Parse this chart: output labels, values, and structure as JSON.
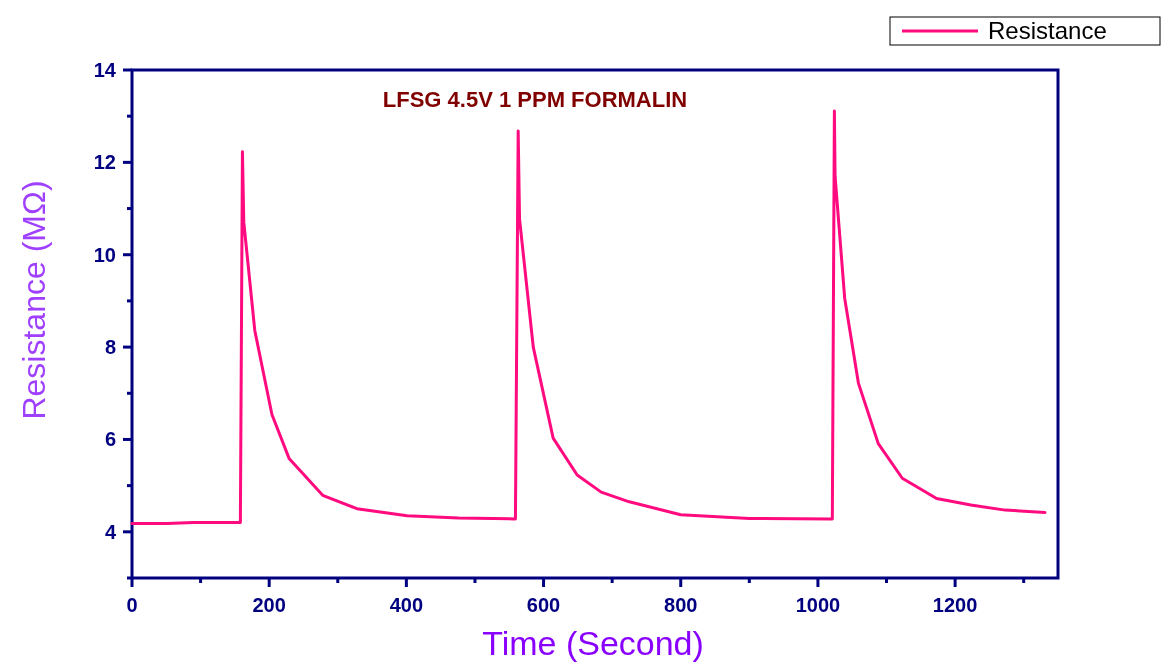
{
  "chart_data": {
    "type": "line",
    "title": "LFSG 4.5V 1 PPM FORMALIN",
    "xlabel": "Time (Second)",
    "ylabel": "Resistance (MΩ)",
    "xlim": [
      0,
      1350
    ],
    "ylim": [
      3,
      14
    ],
    "xticks": [
      0,
      {
        "value": 100,
        "label": null
      },
      200,
      {
        "value": 300,
        "label": null
      },
      400,
      {
        "value": 500,
        "label": null
      },
      600,
      {
        "value": 700,
        "label": null
      },
      800,
      {
        "value": 900,
        "label": null
      },
      1000,
      {
        "value": 1100,
        "label": null
      },
      1200,
      {
        "value": 1300,
        "label": null
      }
    ],
    "yticks": [
      {
        "value": 3,
        "label": null
      },
      4,
      {
        "value": 5,
        "label": null
      },
      6,
      {
        "value": 7,
        "label": null
      },
      8,
      {
        "value": 9,
        "label": null
      },
      10,
      {
        "value": 11,
        "label": null
      },
      12,
      {
        "value": 13,
        "label": null
      },
      14
    ],
    "legend": "top right",
    "line_style": "solid",
    "marker": "none",
    "series": [
      {
        "name": "Resistance",
        "color": "#ff0a7f",
        "x": [
          0,
          50,
          90,
          130,
          157,
          158,
          161,
          163,
          179,
          204,
          229,
          278,
          328,
          401,
          476,
          558,
          559,
          563,
          565,
          585,
          614,
          649,
          684,
          725,
          800,
          900,
          1019,
          1021,
          1024,
          1025,
          1039,
          1059,
          1088,
          1123,
          1173,
          1223,
          1273,
          1331
        ],
        "values": [
          4.18,
          4.18,
          4.2,
          4.2,
          4.2,
          4.2,
          12.23,
          10.7,
          8.36,
          6.54,
          5.59,
          4.79,
          4.5,
          4.35,
          4.3,
          4.28,
          4.28,
          12.68,
          10.77,
          8.0,
          6.03,
          5.23,
          4.86,
          4.65,
          4.37,
          4.29,
          4.28,
          4.28,
          13.11,
          11.7,
          9.06,
          7.22,
          5.91,
          5.16,
          4.72,
          4.58,
          4.47,
          4.42
        ]
      }
    ]
  }
}
